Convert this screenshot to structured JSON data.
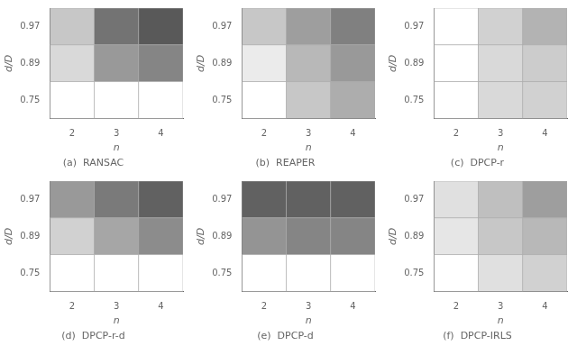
{
  "chart_data": [
    {
      "type": "heatmap",
      "title": "(a)  RANSAC",
      "x_label": "n",
      "y_label": "d/D",
      "x": [
        "2",
        "3",
        "4"
      ],
      "y": [
        "0.97",
        "0.89",
        "0.75"
      ],
      "zlim": [
        0.0,
        1.0
      ],
      "grid": false,
      "values": [
        [
          0.78,
          0.45,
          0.35
        ],
        [
          0.85,
          0.6,
          0.52
        ],
        [
          1.0,
          1.0,
          1.0
        ]
      ]
    },
    {
      "type": "heatmap",
      "title": "(b)  REAPER",
      "x_label": "n",
      "y_label": "d/D",
      "x": [
        "2",
        "3",
        "4"
      ],
      "y": [
        "0.97",
        "0.89",
        "0.75"
      ],
      "zlim": [
        0.0,
        1.0
      ],
      "grid": false,
      "values": [
        [
          0.78,
          0.62,
          0.5
        ],
        [
          0.92,
          0.72,
          0.6
        ],
        [
          1.0,
          0.78,
          0.68
        ]
      ]
    },
    {
      "type": "heatmap",
      "title": "(c)  DPCP-r",
      "x_label": "n",
      "y_label": "d/D",
      "x": [
        "2",
        "3",
        "4"
      ],
      "y": [
        "0.97",
        "0.89",
        "0.75"
      ],
      "zlim": [
        0.0,
        1.0
      ],
      "grid": false,
      "values": [
        [
          1.0,
          0.82,
          0.7
        ],
        [
          1.0,
          0.85,
          0.8
        ],
        [
          1.0,
          0.85,
          0.82
        ]
      ]
    },
    {
      "type": "heatmap",
      "title": "(d)  DPCP-r-d",
      "x_label": "n",
      "y_label": "d/D",
      "x": [
        "2",
        "3",
        "4"
      ],
      "y": [
        "0.97",
        "0.89",
        "0.75"
      ],
      "zlim": [
        0.0,
        1.0
      ],
      "grid": false,
      "values": [
        [
          0.6,
          0.48,
          0.38
        ],
        [
          0.82,
          0.65,
          0.55
        ],
        [
          1.0,
          1.0,
          1.0
        ]
      ]
    },
    {
      "type": "heatmap",
      "title": "(e)  DPCP-d",
      "x_label": "n",
      "y_label": "d/D",
      "x": [
        "2",
        "3",
        "4"
      ],
      "y": [
        "0.97",
        "0.89",
        "0.75"
      ],
      "zlim": [
        0.0,
        1.0
      ],
      "grid": false,
      "values": [
        [
          0.38,
          0.38,
          0.38
        ],
        [
          0.58,
          0.52,
          0.52
        ],
        [
          1.0,
          1.0,
          1.0
        ]
      ]
    },
    {
      "type": "heatmap",
      "title": "(f)  DPCP-IRLS",
      "x_label": "n",
      "y_label": "d/D",
      "x": [
        "2",
        "3",
        "4"
      ],
      "y": [
        "0.97",
        "0.89",
        "0.75"
      ],
      "zlim": [
        0.0,
        1.0
      ],
      "grid": false,
      "values": [
        [
          0.88,
          0.75,
          0.62
        ],
        [
          0.9,
          0.78,
          0.72
        ],
        [
          1.0,
          0.88,
          0.82
        ]
      ]
    }
  ]
}
